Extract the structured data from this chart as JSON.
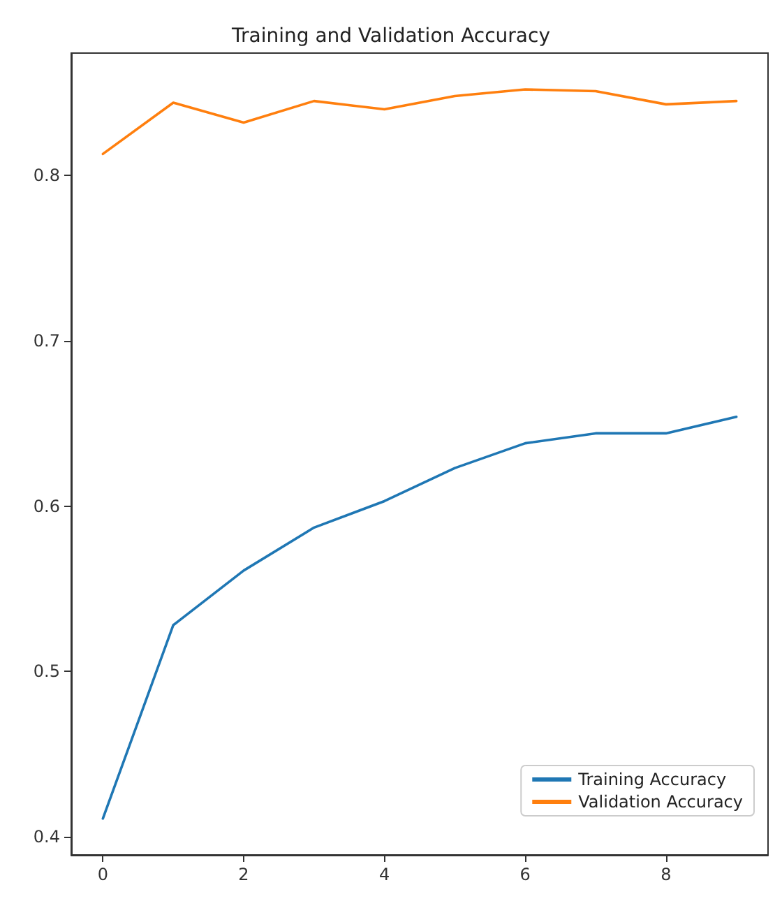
{
  "chart_data": {
    "type": "line",
    "title": "Training and Validation Accuracy",
    "x": [
      0,
      1,
      2,
      3,
      4,
      5,
      6,
      7,
      8,
      9
    ],
    "series": [
      {
        "name": "Training Accuracy",
        "color": "#1f77b4",
        "values": [
          0.411,
          0.528,
          0.561,
          0.587,
          0.603,
          0.623,
          0.638,
          0.644,
          0.644,
          0.654
        ]
      },
      {
        "name": "Validation Accuracy",
        "color": "#ff7f0e",
        "values": [
          0.813,
          0.844,
          0.832,
          0.845,
          0.84,
          0.848,
          0.852,
          0.851,
          0.843,
          0.845
        ]
      }
    ],
    "xlim": [
      -0.45,
      9.45
    ],
    "xticks": [
      0,
      2,
      4,
      6,
      8
    ],
    "ylim": [
      0.389,
      0.874
    ],
    "yticks": [
      0.4,
      0.5,
      0.6,
      0.7,
      0.8
    ],
    "grid": false,
    "legend": "bottom right",
    "marker": "none",
    "line_style": "solid"
  }
}
